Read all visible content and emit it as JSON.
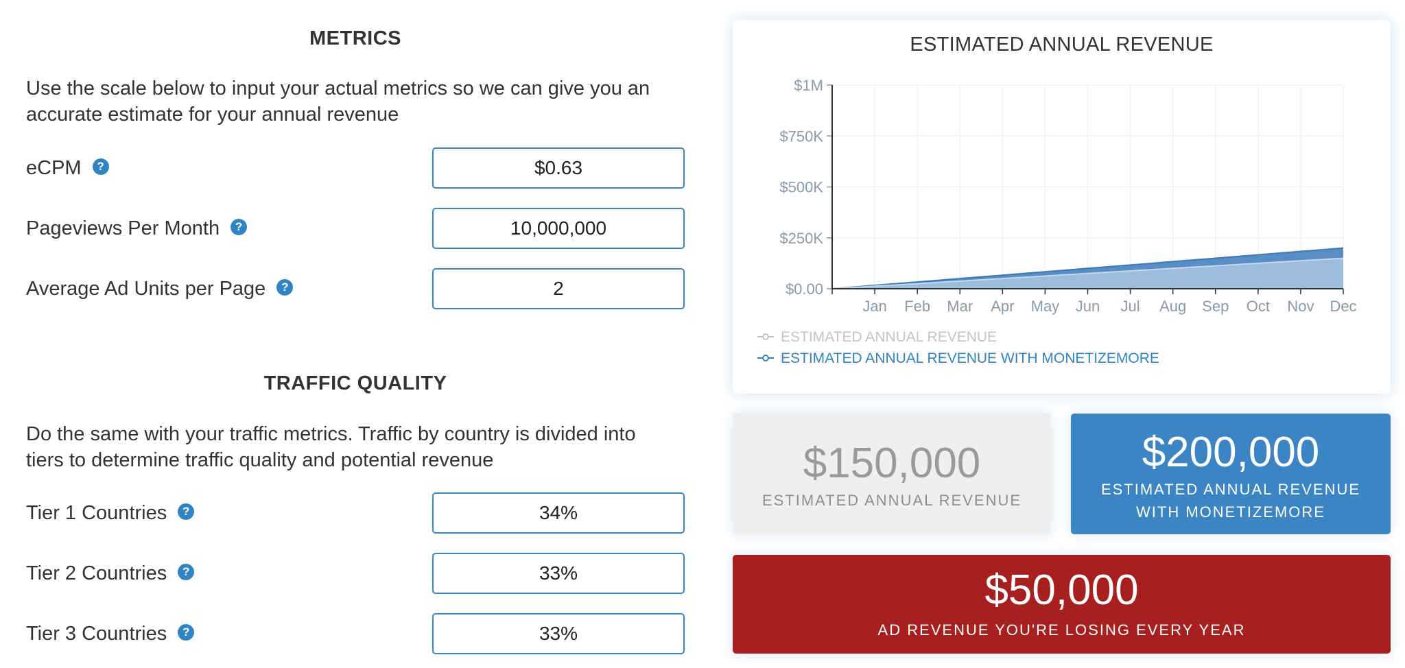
{
  "metrics": {
    "title": "METRICS",
    "description_line1": "Use the scale below to input your actual metrics so we can give you an",
    "description_line2": "accurate estimate for your annual revenue",
    "fields": [
      {
        "label": "eCPM",
        "value": "$0.63"
      },
      {
        "label": "Pageviews Per Month",
        "value": "10,000,000"
      },
      {
        "label": "Average Ad Units per Page",
        "value": "2"
      }
    ]
  },
  "traffic": {
    "title": "TRAFFIC QUALITY",
    "description_line1": "Do the same with your traffic metrics. Traffic by country is divided into",
    "description_line2": "tiers to determine traffic quality and potential revenue",
    "fields": [
      {
        "label": "Tier 1 Countries",
        "value": "34%"
      },
      {
        "label": "Tier 2 Countries",
        "value": "33%"
      },
      {
        "label": "Tier 3 Countries",
        "value": "33%"
      }
    ]
  },
  "help_icon_glyph": "?",
  "colors": {
    "accent_blue": "#3b85c4",
    "loss_red": "#a81f1f",
    "grey_box": "#efefef",
    "series_base": "#a9c5e3",
    "series_monetizemore": "#4f87c2"
  },
  "chart_data": {
    "type": "area",
    "title": "ESTIMATED ANNUAL REVENUE",
    "x": [
      "",
      "Jan",
      "Feb",
      "Mar",
      "Apr",
      "May",
      "Jun",
      "Jul",
      "Aug",
      "Sep",
      "Oct",
      "Nov",
      "Dec"
    ],
    "y_ticks": [
      "$0.00",
      "$250K",
      "$500K",
      "$750K",
      "$1M"
    ],
    "ylim": [
      0,
      1000000
    ],
    "grid": true,
    "legend_position": "bottom-left",
    "series": [
      {
        "name": "ESTIMATED ANNUAL REVENUE",
        "values": [
          0,
          12500,
          25000,
          37500,
          50000,
          62500,
          75000,
          87500,
          100000,
          112500,
          125000,
          137500,
          150000
        ]
      },
      {
        "name": "ESTIMATED ANNUAL REVENUE WITH MONETIZEMORE",
        "values": [
          0,
          16667,
          33333,
          50000,
          66667,
          83333,
          100000,
          116667,
          133333,
          150000,
          166667,
          183333,
          200000
        ]
      }
    ]
  },
  "summary": {
    "base": {
      "value": "$150,000",
      "label": "ESTIMATED ANNUAL REVENUE"
    },
    "monetizemore": {
      "value": "$200,000",
      "label_line1": "ESTIMATED ANNUAL REVENUE",
      "label_line2": "WITH MONETIZEMORE"
    },
    "loss": {
      "value": "$50,000",
      "label": "AD REVENUE YOU'RE LOSING EVERY YEAR"
    }
  }
}
